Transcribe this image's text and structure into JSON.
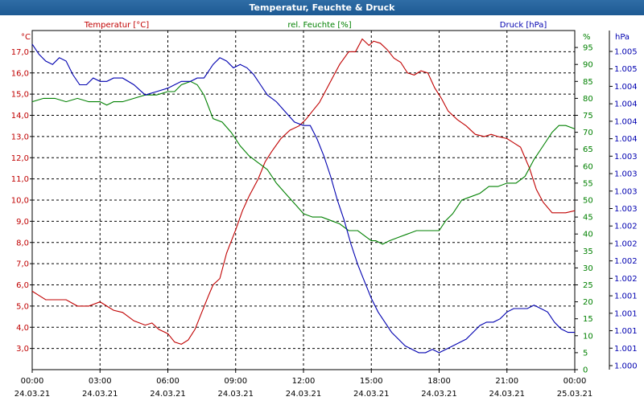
{
  "window_title": "Temperatur, Feuchte & Druck",
  "chart_data": {
    "type": "line",
    "title": "Temperatur, Feuchte & Druck",
    "x_tick_times": [
      "00:00",
      "03:00",
      "06:00",
      "09:00",
      "12:00",
      "15:00",
      "18:00",
      "21:00",
      "00:00"
    ],
    "x_tick_dates": [
      "24.03.21",
      "24.03.21",
      "24.03.21",
      "24.03.21",
      "24.03.21",
      "24.03.21",
      "24.03.21",
      "24.03.21",
      "25.03.21"
    ],
    "xlim": [
      0,
      24
    ],
    "grid": true,
    "axes": {
      "left": {
        "unit": "°C",
        "ylim": [
          2.0,
          18.0
        ],
        "ticks": [
          "3,0",
          "4,0",
          "5,0",
          "6,0",
          "7,0",
          "8,0",
          "9,0",
          "10,0",
          "11,0",
          "12,0",
          "13,0",
          "14,0",
          "15,0",
          "16,0",
          "17,0"
        ],
        "tick_values": [
          3,
          4,
          5,
          6,
          7,
          8,
          9,
          10,
          11,
          12,
          13,
          14,
          15,
          16,
          17
        ]
      },
      "middle": {
        "unit": "%",
        "ylim": [
          0,
          100
        ],
        "ticks": [
          "0",
          "5",
          "10",
          "15",
          "20",
          "25",
          "30",
          "35",
          "40",
          "45",
          "50",
          "55",
          "60",
          "65",
          "70",
          "75",
          "80",
          "85",
          "90",
          "95"
        ],
        "tick_values": [
          0,
          5,
          10,
          15,
          20,
          25,
          30,
          35,
          40,
          45,
          50,
          55,
          60,
          65,
          70,
          75,
          80,
          85,
          90,
          95
        ]
      },
      "right": {
        "unit": "hPa",
        "ticks": [
          "1.000",
          "1.001",
          "1.001",
          "1.001",
          "1.001",
          "1.002",
          "1.002",
          "1.002",
          "1.002",
          "1.003",
          "1.003",
          "1.003",
          "1.003",
          "1.004",
          "1.004",
          "1.004",
          "1.004",
          "1.005",
          "1.005"
        ]
      }
    },
    "series": [
      {
        "name": "Temperatur [°C]",
        "axis": "left",
        "color": "#c00000",
        "x": [
          0,
          0.3,
          0.6,
          1,
          1.5,
          2,
          2.5,
          3,
          3.3,
          3.6,
          4,
          4.5,
          5,
          5.3,
          5.6,
          6,
          6.3,
          6.6,
          6.9,
          7.2,
          7.5,
          7.8,
          8,
          8.3,
          8.6,
          9,
          9.3,
          9.6,
          10,
          10.3,
          10.6,
          11,
          11.4,
          11.8,
          12.1,
          12.4,
          12.7,
          13,
          13.3,
          13.6,
          14,
          14.3,
          14.6,
          14.9,
          15.1,
          15.4,
          15.7,
          16,
          16.3,
          16.6,
          16.9,
          17.2,
          17.5,
          17.8,
          18.1,
          18.4,
          18.8,
          19.2,
          19.6,
          20,
          20.3,
          20.6,
          21,
          21.3,
          21.6,
          22,
          22.3,
          22.6,
          23,
          23.3,
          23.6,
          24
        ],
        "values": [
          5.7,
          5.5,
          5.3,
          5.3,
          5.3,
          5.0,
          5.0,
          5.2,
          5.0,
          4.8,
          4.7,
          4.3,
          4.1,
          4.2,
          3.9,
          3.7,
          3.3,
          3.2,
          3.4,
          3.9,
          4.7,
          5.5,
          6.0,
          6.3,
          7.5,
          8.6,
          9.5,
          10.2,
          11.0,
          11.8,
          12.3,
          12.9,
          13.3,
          13.5,
          13.8,
          14.2,
          14.6,
          15.2,
          15.8,
          16.4,
          17.0,
          17.0,
          17.6,
          17.3,
          17.5,
          17.4,
          17.1,
          16.7,
          16.5,
          16.0,
          15.9,
          16.1,
          16.0,
          15.3,
          14.8,
          14.2,
          13.8,
          13.5,
          13.1,
          13.0,
          13.1,
          13.0,
          12.9,
          12.7,
          12.5,
          11.5,
          10.5,
          9.9,
          9.4,
          9.4,
          9.4,
          9.5
        ]
      },
      {
        "name": "rel. Feuchte [%]",
        "axis": "middle",
        "color": "#008000",
        "x": [
          0,
          0.5,
          1,
          1.5,
          2,
          2.5,
          3,
          3.3,
          3.6,
          4,
          4.5,
          5,
          5.5,
          6,
          6.3,
          6.6,
          7,
          7.3,
          7.6,
          8,
          8.4,
          8.8,
          9.2,
          9.6,
          10,
          10.4,
          10.8,
          11.2,
          11.6,
          12,
          12.4,
          12.8,
          13.2,
          13.6,
          14,
          14.4,
          14.8,
          15,
          15.2,
          15.5,
          15.8,
          16.2,
          16.6,
          17,
          17.4,
          17.8,
          18,
          18.3,
          18.6,
          19,
          19.4,
          19.8,
          20.2,
          20.6,
          21,
          21.4,
          21.8,
          22.2,
          22.6,
          23,
          23.3,
          23.6,
          24
        ],
        "values": [
          79,
          80,
          80,
          79,
          80,
          79,
          79,
          78,
          79,
          79,
          80,
          81,
          81,
          82,
          82,
          84,
          85,
          84,
          81,
          74,
          73,
          70,
          66,
          63,
          61,
          59,
          55,
          52,
          49,
          46,
          45,
          45,
          44,
          43,
          41,
          41,
          39,
          38,
          38,
          37,
          38,
          39,
          40,
          41,
          41,
          41,
          41,
          44,
          46,
          50,
          51,
          52,
          54,
          54,
          55,
          55,
          57,
          62,
          66,
          70,
          72,
          72,
          71
        ]
      },
      {
        "name": "Druck [hPa]",
        "axis": "middle",
        "color": "#0000b0",
        "x": [
          0,
          0.3,
          0.6,
          0.9,
          1.2,
          1.5,
          1.8,
          2.1,
          2.4,
          2.7,
          3,
          3.3,
          3.6,
          4,
          4.5,
          5,
          5.5,
          6,
          6.3,
          6.6,
          7,
          7.3,
          7.6,
          8,
          8.3,
          8.6,
          8.9,
          9.2,
          9.5,
          9.8,
          10.1,
          10.4,
          10.8,
          11.2,
          11.6,
          12,
          12.3,
          12.6,
          12.9,
          13.2,
          13.5,
          13.8,
          14.1,
          14.4,
          14.7,
          15,
          15.3,
          15.6,
          15.9,
          16.2,
          16.5,
          16.8,
          17.1,
          17.4,
          17.7,
          18,
          18.3,
          18.6,
          18.9,
          19.2,
          19.5,
          19.8,
          20.1,
          20.4,
          20.7,
          21,
          21.3,
          21.6,
          21.9,
          22.2,
          22.5,
          22.8,
          23.1,
          23.4,
          23.7,
          24
        ],
        "values": [
          96,
          93,
          91,
          90,
          92,
          91,
          87,
          84,
          84,
          86,
          85,
          85,
          86,
          86,
          84,
          81,
          82,
          83,
          84,
          85,
          85,
          86,
          86,
          90,
          92,
          91,
          89,
          90,
          89,
          87,
          84,
          81,
          79,
          76,
          73,
          72,
          72,
          68,
          63,
          57,
          50,
          44,
          37,
          31,
          26,
          21,
          17,
          14,
          11,
          9,
          7,
          6,
          5,
          5,
          6,
          5,
          6,
          7,
          8,
          9,
          11,
          13,
          14,
          14,
          15,
          17,
          18,
          18,
          18,
          19,
          18,
          17,
          14,
          12,
          11,
          11
        ]
      }
    ]
  }
}
